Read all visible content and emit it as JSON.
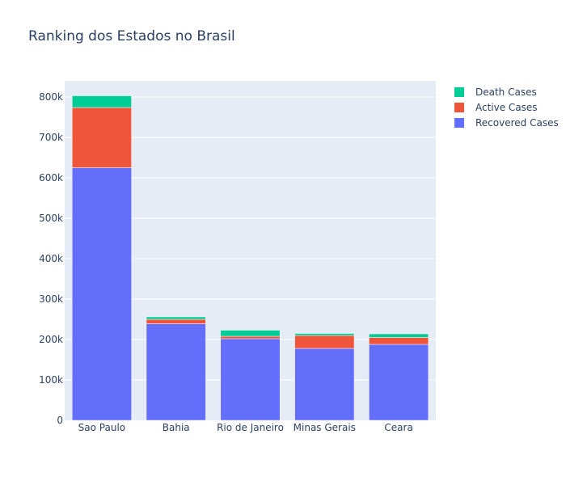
{
  "chart_data": {
    "type": "bar",
    "barmode": "stack",
    "title": "Ranking dos Estados no Brasil",
    "xlabel": "",
    "ylabel": "",
    "categories": [
      "Sao Paulo",
      "Bahia",
      "Rio de Janeiro",
      "Minas Gerais",
      "Ceara"
    ],
    "series": [
      {
        "name": "Recovered Cases",
        "color": "#636efa",
        "values": [
          625000,
          239000,
          202000,
          178000,
          188000
        ]
      },
      {
        "name": "Active Cases",
        "color": "#ef553b",
        "values": [
          149000,
          11000,
          6000,
          32000,
          17000
        ]
      },
      {
        "name": "Death Cases",
        "color": "#00cc96",
        "values": [
          29000,
          6000,
          15000,
          5000,
          9000
        ]
      }
    ],
    "ylim": [
      0,
      840000
    ],
    "yticks": [
      0,
      100000,
      200000,
      300000,
      400000,
      500000,
      600000,
      700000,
      800000
    ],
    "ytick_labels": [
      "0",
      "100k",
      "200k",
      "300k",
      "400k",
      "500k",
      "600k",
      "700k",
      "800k"
    ],
    "legend": {
      "placement": "top-right",
      "order": [
        "Death Cases",
        "Active Cases",
        "Recovered Cases"
      ]
    },
    "grid": true,
    "plot_background": "#e5ecf6"
  }
}
